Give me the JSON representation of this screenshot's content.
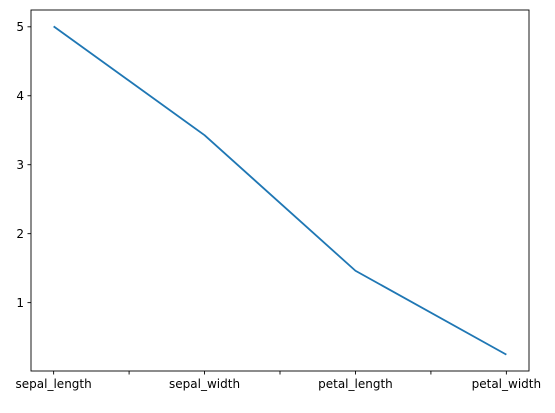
{
  "chart_data": {
    "type": "line",
    "title": "",
    "xlabel": "",
    "ylabel": "",
    "categories": [
      "sepal_length",
      "sepal_width",
      "petal_length",
      "petal_width"
    ],
    "x_ticks_labeled": [
      "sepal_length",
      "sepal_width",
      "petal_length",
      "petal_width"
    ],
    "x_minor_ticks_unlabeled": true,
    "series": [
      {
        "values": [
          5.006,
          3.428,
          1.462,
          0.246
        ],
        "color": "#1f77b4"
      }
    ],
    "yticks": [
      1,
      2,
      3,
      4,
      5
    ],
    "ylim": [
      0.0083,
      5.2437
    ],
    "grid": false,
    "legend": "none"
  }
}
